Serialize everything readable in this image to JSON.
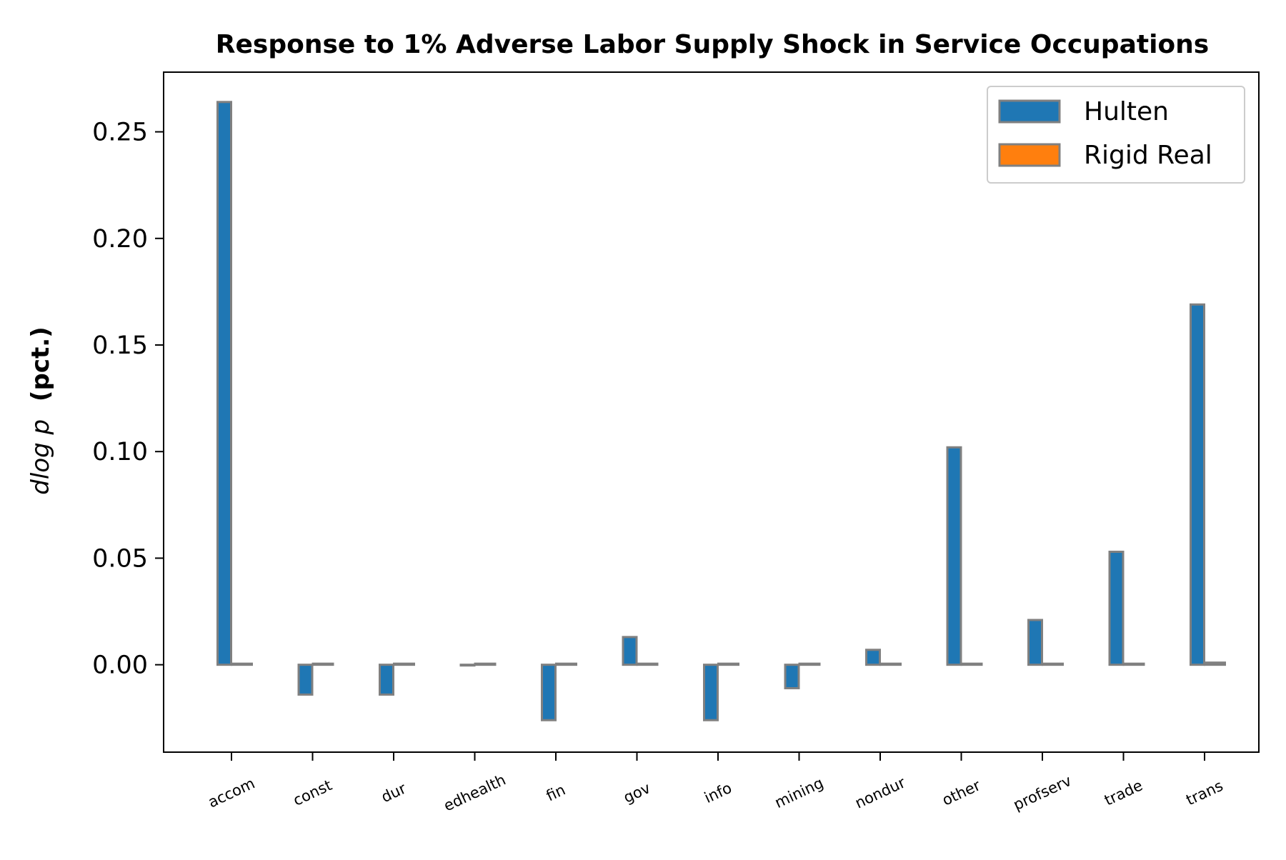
{
  "chart_data": {
    "type": "bar",
    "title": "Response to 1% Adverse Labor Supply Shock in Service Occupations",
    "ylabel_math": "dlog p",
    "ylabel_units": "(pct.)",
    "categories": [
      "accom",
      "const",
      "dur",
      "edhealth",
      "fin",
      "gov",
      "info",
      "mining",
      "nondur",
      "other",
      "profserv",
      "trade",
      "trans"
    ],
    "series": [
      {
        "name": "Hulten",
        "color": "#1f77b4",
        "values": [
          0.264,
          -0.014,
          -0.014,
          0.0,
          -0.026,
          0.013,
          -0.026,
          -0.011,
          0.007,
          0.102,
          0.021,
          0.053,
          0.169
        ]
      },
      {
        "name": "Rigid Real",
        "color": "#ff7f0e",
        "values": [
          0.0005,
          0.0005,
          0.0005,
          0.0005,
          0.0005,
          0.0005,
          0.0005,
          0.0005,
          0.0005,
          0.0005,
          0.0005,
          0.0005,
          0.001
        ]
      }
    ],
    "edge_color": "#808080",
    "ylim": [
      -0.041,
      0.278
    ],
    "yticks": [
      0.0,
      0.05,
      0.1,
      0.15,
      0.2,
      0.25
    ],
    "ytick_labels": [
      "0.00",
      "0.05",
      "0.10",
      "0.15",
      "0.20",
      "0.25"
    ],
    "legend_position": "top-right",
    "grid": false
  }
}
